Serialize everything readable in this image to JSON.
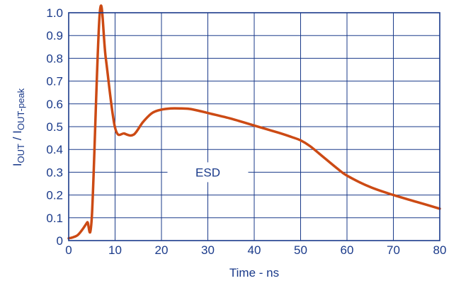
{
  "chart_data": {
    "type": "line",
    "xlabel": "Time - ns",
    "ylabel": {
      "main": "I",
      "sub1": "OUT",
      "mid": " / I",
      "sub2": "OUT-peak"
    },
    "xlim": [
      0,
      80
    ],
    "ylim": [
      0,
      1.0
    ],
    "x_ticks": [
      0,
      10,
      20,
      30,
      40,
      50,
      60,
      70,
      80
    ],
    "y_ticks": [
      "0",
      "0.1",
      "0.2",
      "0.3",
      "0.4",
      "0.5",
      "0.6",
      "0.7",
      "0.8",
      "0.9",
      "1.0"
    ],
    "grid": true,
    "annotation": {
      "text": "ESD",
      "x": 30,
      "y": 0.3
    },
    "colors": {
      "series": "#cc4a14",
      "grid": "#1a3a8a",
      "frame": "#1a3a8a",
      "text": "#1a3a8a"
    },
    "series": [
      {
        "x": [
          0,
          1,
          2,
          3,
          4,
          5,
          6.7,
          8,
          10,
          12,
          14,
          16,
          18,
          20,
          22,
          24,
          26,
          28,
          30,
          35,
          40,
          45,
          48,
          50,
          52,
          55,
          58,
          60,
          65,
          70,
          75,
          80
        ],
        "values": [
          0.01,
          0.015,
          0.025,
          0.05,
          0.08,
          0.11,
          1.0,
          0.8,
          0.495,
          0.47,
          0.465,
          0.52,
          0.56,
          0.575,
          0.58,
          0.58,
          0.578,
          0.57,
          0.56,
          0.535,
          0.505,
          0.475,
          0.455,
          0.44,
          0.415,
          0.365,
          0.315,
          0.285,
          0.235,
          0.2,
          0.17,
          0.14
        ]
      }
    ]
  }
}
